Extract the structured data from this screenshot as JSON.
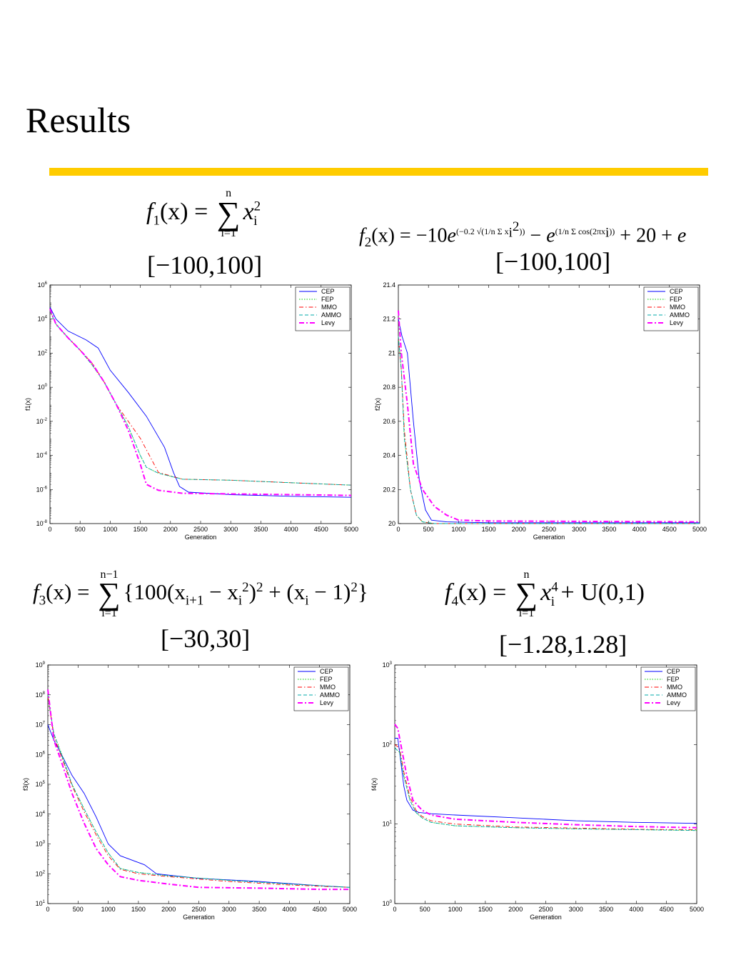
{
  "slide": {
    "title": "Results",
    "rule_color": "#ffcc00"
  },
  "formulas": {
    "f1": {
      "lhs": "f",
      "sub": "1",
      "arg": "(x) = ",
      "sum_top": "n",
      "sum_bottom": "i=1",
      "body": "x",
      "body_sub": "i",
      "body_sup": "2"
    },
    "f2": {
      "text_a": "f",
      "sub": "2",
      "text_b": "(x) = −10",
      "e1": "e",
      "exp1": "(−0.2 √(1/n Σ x",
      "exp1_sub": "i",
      "exp1_sup": "2",
      "exp1_end": "))",
      "minus": " − ",
      "e2": "e",
      "exp2": "(1/n Σ cos(2πx",
      "exp2_sub": "i",
      "exp2_end": "))",
      "tail": " + 20 + ",
      "tail_e": "e"
    },
    "f3": {
      "lhs": "f",
      "sub": "3",
      "arg": "(x) = ",
      "sum_top": "n−1",
      "sum_bottom": "i=1",
      "body_a": "{100(x",
      "body_a_sub": "i+1",
      "body_b": " − x",
      "body_b_sub": "i",
      "body_b_sup": "2",
      "body_c": ")",
      "body_c_sup": "2",
      "body_d": " + (x",
      "body_d_sub": "i",
      "body_e": " − 1)",
      "body_e_sup": "2",
      "body_f": "}"
    },
    "f4": {
      "lhs": "f",
      "sub": "4",
      "arg": "(x) = ",
      "sum_top": "n",
      "sum_bottom": "i=1",
      "body": "x",
      "body_sub": "i",
      "body_sup": "4",
      "tail": " + U(0,1)"
    }
  },
  "domains": {
    "f1": "[−100,100]",
    "f2": "[−100,100]",
    "f3": "[−30,30]",
    "f4": "[−1.28,1.28]"
  },
  "chart_data": [
    {
      "type": "line",
      "xlabel": "Generation",
      "ylabel": "f1(x)",
      "y_scale": "log",
      "xlim": [
        0,
        5000
      ],
      "ylim": [
        1e-08,
        1000000.0
      ],
      "xticks": [
        0,
        500,
        1000,
        1500,
        2000,
        2500,
        3000,
        3500,
        4000,
        4500,
        5000
      ],
      "yticks": [
        "10^-8",
        "10^-6",
        "10^-4",
        "10^-2",
        "10^0",
        "10^2",
        "10^4",
        "10^6"
      ],
      "legend_placement": "top-right",
      "series": [
        {
          "name": "CEP",
          "color": "#0000ff",
          "style": "solid",
          "x": [
            0,
            100,
            300,
            600,
            800,
            1000,
            1300,
            1600,
            1900,
            2050,
            2150,
            2300,
            3000,
            4000,
            5000
          ],
          "y": [
            50000,
            10000,
            2000,
            600,
            200,
            10,
            0.5,
            0.02,
            0.0003,
            1e-05,
            1.5e-06,
            7e-07,
            5e-07,
            4e-07,
            3.5e-07
          ]
        },
        {
          "name": "FEP",
          "color": "#00cc00",
          "style": "dotted",
          "x": [
            0,
            100,
            300,
            500,
            700,
            900,
            1100,
            1300,
            1500,
            1600,
            1800,
            2200,
            3000,
            4000,
            5000
          ],
          "y": [
            30000,
            5000,
            800,
            150,
            20,
            2,
            0.1,
            0.005,
            0.0001,
            2e-05,
            9e-06,
            4e-06,
            3.5e-06,
            2.5e-06,
            1.8e-06
          ]
        },
        {
          "name": "MMO",
          "color": "#ff0000",
          "style": "dashdot",
          "x": [
            0,
            100,
            300,
            500,
            700,
            900,
            1100,
            1300,
            1500,
            1650,
            1800,
            2200,
            3000,
            4000,
            5000
          ],
          "y": [
            30000,
            5000,
            800,
            150,
            25,
            2,
            0.1,
            0.01,
            0.001,
            0.0001,
            1e-05,
            4e-06,
            3.5e-06,
            2.5e-06,
            1.8e-06
          ]
        },
        {
          "name": "AMMO",
          "color": "#00aaaa",
          "style": "dashed",
          "x": [
            0,
            100,
            300,
            500,
            700,
            900,
            1100,
            1300,
            1500,
            1600,
            1800,
            2200,
            3000,
            4000,
            5000
          ],
          "y": [
            30000,
            5000,
            800,
            150,
            20,
            2,
            0.1,
            0.005,
            0.0001,
            2e-05,
            9e-06,
            4e-06,
            3.5e-06,
            2.5e-06,
            1.8e-06
          ]
        },
        {
          "name": "Levy",
          "color": "#ff00ff",
          "style": "dashdot-bold",
          "x": [
            0,
            100,
            300,
            500,
            700,
            900,
            1100,
            1300,
            1500,
            1600,
            1800,
            2200,
            3000,
            4000,
            5000
          ],
          "y": [
            40000,
            5000,
            800,
            150,
            25,
            2,
            0.1,
            0.003,
            3e-05,
            2e-06,
            9e-07,
            6e-07,
            5.5e-07,
            5e-07,
            4.5e-07
          ]
        }
      ]
    },
    {
      "type": "line",
      "xlabel": "Generation",
      "ylabel": "f2(x)",
      "y_scale": "linear",
      "xlim": [
        0,
        5000
      ],
      "ylim": [
        20,
        21.4
      ],
      "xticks": [
        0,
        500,
        1000,
        1500,
        2000,
        2500,
        3000,
        3500,
        4000,
        4500,
        5000
      ],
      "yticks": [
        "20",
        "20.2",
        "20.4",
        "20.6",
        "20.8",
        "21",
        "21.2",
        "21.4"
      ],
      "legend_placement": "top-right",
      "series": [
        {
          "name": "CEP",
          "color": "#0000ff",
          "style": "solid",
          "x": [
            0,
            60,
            150,
            250,
            350,
            450,
            550,
            800,
            1500,
            5000
          ],
          "y": [
            21.2,
            21.1,
            21.0,
            20.6,
            20.25,
            20.08,
            20.02,
            20.01,
            20.005,
            20.005
          ]
        },
        {
          "name": "FEP",
          "color": "#00cc00",
          "style": "dotted",
          "x": [
            0,
            50,
            100,
            200,
            300,
            400,
            600,
            5000
          ],
          "y": [
            21.1,
            20.9,
            20.5,
            20.2,
            20.05,
            20.01,
            20.0,
            20.0
          ]
        },
        {
          "name": "MMO",
          "color": "#ff0000",
          "style": "dashdot",
          "x": [
            0,
            50,
            100,
            200,
            300,
            400,
            600,
            5000
          ],
          "y": [
            21.1,
            20.9,
            20.55,
            20.2,
            20.05,
            20.01,
            20.0,
            20.0
          ]
        },
        {
          "name": "AMMO",
          "color": "#00aaaa",
          "style": "dashed",
          "x": [
            0,
            50,
            100,
            200,
            300,
            400,
            600,
            5000
          ],
          "y": [
            21.1,
            20.9,
            20.5,
            20.2,
            20.05,
            20.01,
            20.0,
            20.0
          ]
        },
        {
          "name": "Levy",
          "color": "#ff00ff",
          "style": "dashdot-bold",
          "x": [
            0,
            50,
            150,
            250,
            400,
            600,
            800,
            1000,
            1500,
            5000
          ],
          "y": [
            21.25,
            21.0,
            20.7,
            20.35,
            20.2,
            20.1,
            20.05,
            20.02,
            20.015,
            20.01
          ]
        }
      ]
    },
    {
      "type": "line",
      "xlabel": "Generation",
      "ylabel": "f3(x)",
      "y_scale": "log",
      "xlim": [
        0,
        5000
      ],
      "ylim": [
        10,
        1000000000.0
      ],
      "xticks": [
        0,
        500,
        1000,
        1500,
        2000,
        2500,
        3000,
        3500,
        4000,
        4500,
        5000
      ],
      "yticks": [
        "10^1",
        "10^2",
        "10^3",
        "10^4",
        "10^5",
        "10^6",
        "10^7",
        "10^8",
        "10^9"
      ],
      "legend_placement": "top-right",
      "series": [
        {
          "name": "CEP",
          "color": "#0000ff",
          "style": "solid",
          "x": [
            0,
            100,
            250,
            400,
            600,
            800,
            1000,
            1200,
            1600,
            1800,
            2500,
            3500,
            4500,
            5000
          ],
          "y": [
            10000000,
            3000000,
            800000,
            200000,
            50000,
            8000,
            1000,
            400,
            200,
            100,
            70,
            55,
            40,
            35
          ]
        },
        {
          "name": "FEP",
          "color": "#00cc00",
          "style": "dotted",
          "x": [
            0,
            100,
            250,
            400,
            600,
            800,
            1000,
            1200,
            1500,
            2000,
            3000,
            4000,
            5000
          ],
          "y": [
            80000000,
            5000000,
            800000,
            100000,
            15000,
            2500,
            500,
            150,
            110,
            85,
            60,
            45,
            35
          ]
        },
        {
          "name": "MMO",
          "color": "#ff0000",
          "style": "dashdot",
          "x": [
            0,
            100,
            250,
            400,
            600,
            800,
            1000,
            1200,
            1500,
            2000,
            3000,
            4000,
            5000
          ],
          "y": [
            90000000,
            4000000,
            600000,
            90000,
            12000,
            2000,
            400,
            140,
            100,
            80,
            55,
            42,
            35
          ]
        },
        {
          "name": "AMMO",
          "color": "#00aaaa",
          "style": "dashed",
          "x": [
            0,
            100,
            250,
            400,
            600,
            800,
            1000,
            1200,
            1500,
            2000,
            3000,
            4000,
            5000
          ],
          "y": [
            100000000,
            5000000,
            700000,
            100000,
            15000,
            2500,
            500,
            150,
            110,
            85,
            60,
            45,
            35
          ]
        },
        {
          "name": "Levy",
          "color": "#ff00ff",
          "style": "dashdot-bold",
          "x": [
            0,
            100,
            250,
            400,
            600,
            800,
            1000,
            1200,
            1500,
            2000,
            2500,
            3500,
            4500,
            5000
          ],
          "y": [
            150000000,
            3000000,
            400000,
            50000,
            5000,
            700,
            200,
            80,
            60,
            45,
            35,
            33,
            30,
            30
          ]
        }
      ]
    },
    {
      "type": "line",
      "xlabel": "Generation",
      "ylabel": "f4(x)",
      "y_scale": "log",
      "xlim": [
        0,
        5000
      ],
      "ylim": [
        1,
        1000
      ],
      "xticks": [
        0,
        500,
        1000,
        1500,
        2000,
        2500,
        3000,
        3500,
        4000,
        4500,
        5000
      ],
      "yticks": [
        "10^0",
        "10^1",
        "10^2",
        "10^3"
      ],
      "legend_placement": "top-right",
      "series": [
        {
          "name": "CEP",
          "color": "#0000ff",
          "style": "solid",
          "x": [
            0,
            50,
            100,
            150,
            200,
            300,
            400,
            600,
            1000,
            2000,
            3000,
            4000,
            5000
          ],
          "y": [
            120,
            120,
            60,
            30,
            20,
            15,
            14,
            13.5,
            13,
            12,
            11,
            10.5,
            10.2
          ]
        },
        {
          "name": "FEP",
          "color": "#00cc00",
          "style": "dotted",
          "x": [
            0,
            80,
            150,
            250,
            350,
            450,
            600,
            1000,
            2000,
            3000,
            4000,
            5000
          ],
          "y": [
            90,
            80,
            40,
            20,
            14,
            12,
            10.5,
            9.5,
            9,
            8.7,
            8.5,
            8.3
          ]
        },
        {
          "name": "MMO",
          "color": "#ff0000",
          "style": "dashdot",
          "x": [
            0,
            80,
            150,
            250,
            350,
            450,
            600,
            1000,
            2000,
            3000,
            4000,
            5000
          ],
          "y": [
            100,
            90,
            45,
            22,
            15,
            12.5,
            11,
            10,
            9.2,
            8.9,
            8.6,
            8.5
          ]
        },
        {
          "name": "AMMO",
          "color": "#00aaaa",
          "style": "dashed",
          "x": [
            0,
            80,
            150,
            250,
            350,
            450,
            600,
            1000,
            2000,
            3000,
            4000,
            5000
          ],
          "y": [
            90,
            80,
            40,
            20,
            14,
            12,
            10.5,
            9.5,
            9,
            8.7,
            8.5,
            8.3
          ]
        },
        {
          "name": "Levy",
          "color": "#ff00ff",
          "style": "dashdot-bold",
          "x": [
            0,
            50,
            100,
            200,
            300,
            450,
            600,
            1000,
            2000,
            3000,
            4000,
            5000
          ],
          "y": [
            180,
            160,
            100,
            40,
            20,
            15,
            13,
            11.5,
            10.5,
            9.8,
            9.3,
            9
          ]
        }
      ]
    }
  ]
}
